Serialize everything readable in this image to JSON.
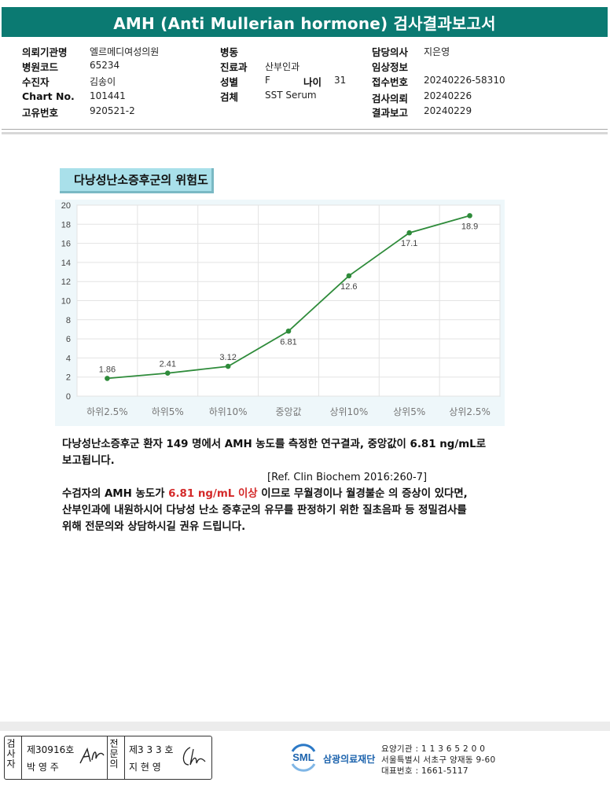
{
  "header": {
    "title": "AMH (Anti Mullerian hormone) 검사결과보고서"
  },
  "info": {
    "col1": [
      {
        "label": "의뢰기관명",
        "value": "엘르메디여성의원"
      },
      {
        "label": "병원코드",
        "value": "65234"
      },
      {
        "label": "수진자",
        "value": "김송이"
      },
      {
        "label": "Chart No.",
        "value": "101441"
      },
      {
        "label": "고유번호",
        "value": "920521-2"
      }
    ],
    "col2": [
      {
        "label": "병동",
        "value": ""
      },
      {
        "label": "진료과",
        "value": "산부인과"
      },
      {
        "label": "성별",
        "value": "F"
      },
      {
        "label": "검체",
        "value": "SST Serum"
      }
    ],
    "age": {
      "label": "나이",
      "value": "31"
    },
    "col3": [
      {
        "label": "담당의사",
        "value": "지은영"
      },
      {
        "label": "임상정보",
        "value": ""
      },
      {
        "label": "접수번호",
        "value": "20240226-58310"
      },
      {
        "label": "검사의뢰",
        "value": "20240226"
      },
      {
        "label": "결과보고",
        "value": "20240229"
      }
    ]
  },
  "chart_title": "다낭성난소증후군의 위험도",
  "chart_data": {
    "type": "line",
    "categories": [
      "하위2.5%",
      "하위5%",
      "하위10%",
      "중앙값",
      "상위10%",
      "상위5%",
      "상위2.5%"
    ],
    "values": [
      1.86,
      2.41,
      3.12,
      6.81,
      12.6,
      17.1,
      18.9
    ],
    "data_labels": [
      "1.86",
      "2.41",
      "3.12",
      "6.81",
      "12.6",
      "17.1",
      "18.9"
    ],
    "ylim": [
      0,
      20
    ],
    "yticks": [
      0,
      2,
      4,
      6,
      8,
      10,
      12,
      14,
      16,
      18,
      20
    ],
    "grid": true,
    "color": "#2e8b3a",
    "title": "",
    "xlabel": "",
    "ylabel": ""
  },
  "text": {
    "p1_line1": "다낭성난소증후군 환자 149 명에서 AMH 농도를 측정한 연구결과, 중앙값이 6.81 ng/mL로",
    "p1_line2": "보고됩니다.",
    "ref": "[Ref. Clin Biochem 2016:260-7]",
    "p2_line1_a": "수검자의 AMH 농도가 ",
    "p2_line1_red": "6.81 ng/mL 이상",
    "p2_line1_b": " 이므로 무월경이나 월경불순 의 증상이 있다면,",
    "p2_line2": "산부인과에 내원하시어 다낭성 난소 증후군의 유무를 판정하기 위한 질초음파 등 정밀검사를",
    "p2_line3": "위해 전문의와 상담하시길 권유 드립니다."
  },
  "footer": {
    "sign1_label": "검사자",
    "sign1_no": "제30916호",
    "sign1_name": "박 영 주",
    "sign2_label": "전문의",
    "sign2_no": "제3 3 3 호",
    "sign2_name": "지 현 영",
    "org_logo": "SML",
    "org_name": "삼광의료재단",
    "code_line": "요양기관 : 1 1 3 6 5 2 0 0",
    "address_line": "서울특별시 서초구 양재동 9-60",
    "phone_line": "대표번호 : 1661-5117"
  },
  "colors": {
    "header_bg": "#0b7a72",
    "accent_red": "#d42a2a",
    "logo_blue": "#1c63ad"
  }
}
